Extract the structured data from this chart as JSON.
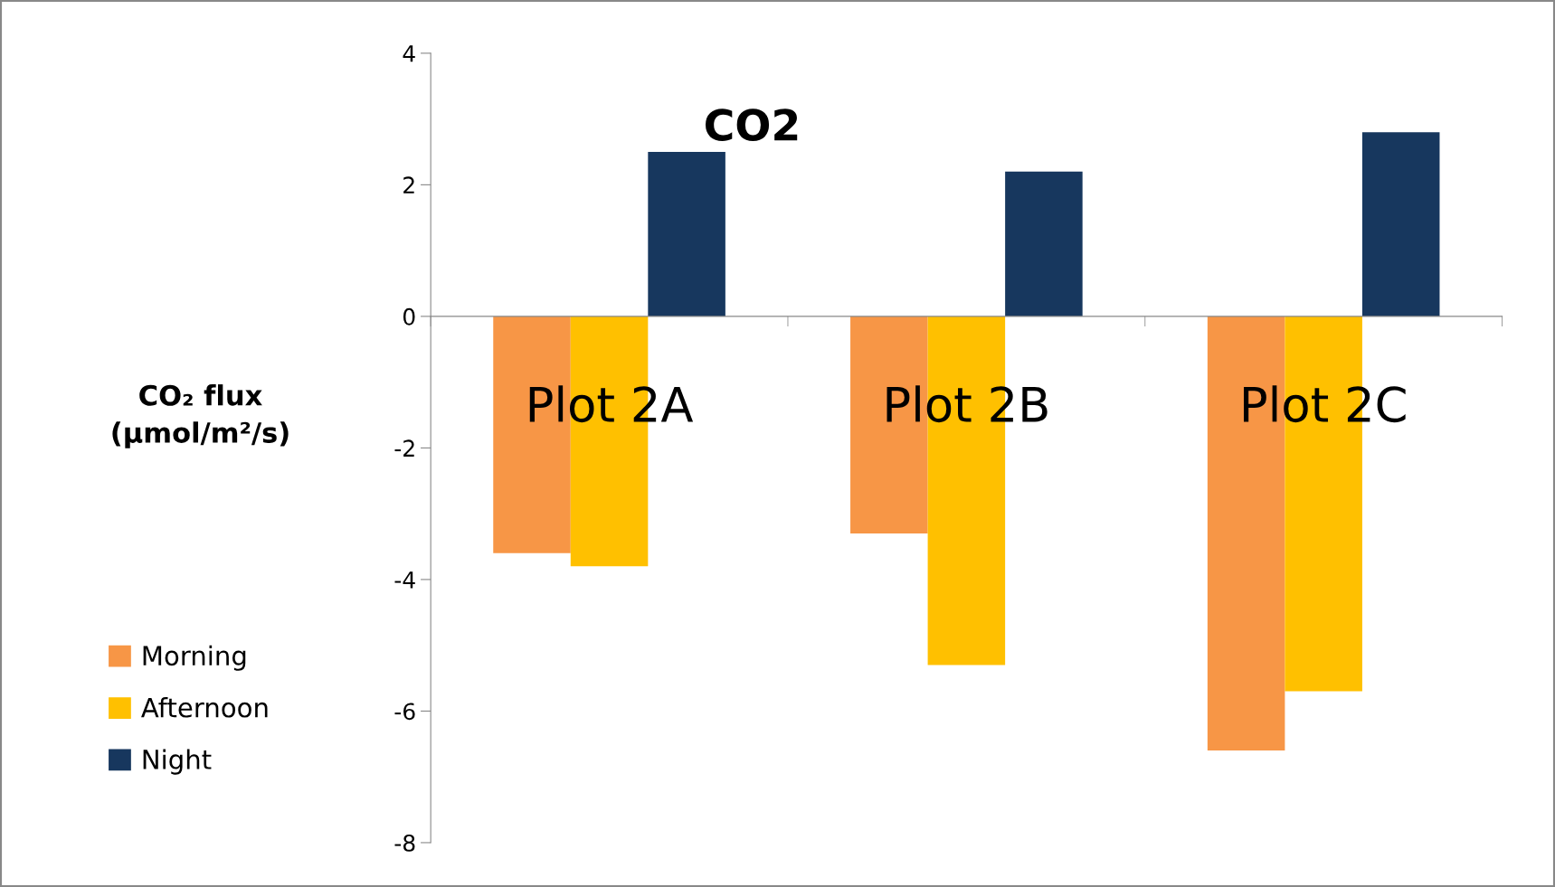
{
  "chart_data": {
    "type": "bar",
    "title": "CO2",
    "ylabel": "CO₂ flux\n(μmol/m²/s)",
    "categories": [
      "Plot 2A",
      "Plot 2B",
      "Plot 2C"
    ],
    "series": [
      {
        "name": "Morning",
        "color": "#f79646",
        "values": [
          -3.6,
          -3.3,
          -6.6
        ]
      },
      {
        "name": "Afternoon",
        "color": "#ffc000",
        "values": [
          -3.8,
          -5.3,
          -5.7
        ]
      },
      {
        "name": "Night",
        "color": "#17375e",
        "values": [
          2.5,
          2.2,
          2.8
        ]
      }
    ],
    "ylim": [
      -8,
      4
    ],
    "yticks": [
      -8,
      -6,
      -4,
      -2,
      0,
      2,
      4
    ],
    "legend": "bottom left"
  }
}
